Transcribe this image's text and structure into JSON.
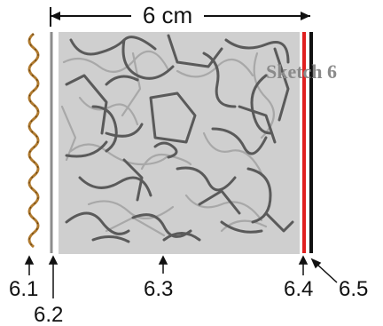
{
  "dimension": {
    "value_label": "6 cm"
  },
  "title": "Sketch 6",
  "layers": [
    {
      "label": "6.1",
      "color": "#b07a2e"
    },
    {
      "label": "6.2",
      "color": "#8c8c8c"
    },
    {
      "label": "6.3",
      "color": "#cfcfcf"
    },
    {
      "label": "6.4",
      "color": "#e02020"
    },
    {
      "label": "6.5",
      "color": "#111111"
    }
  ],
  "colors": {
    "fiber": "#5a5a5a",
    "fiber_light": "#a8a8a8",
    "panel": "#cfcfcf",
    "wave": "#b07a2e"
  }
}
